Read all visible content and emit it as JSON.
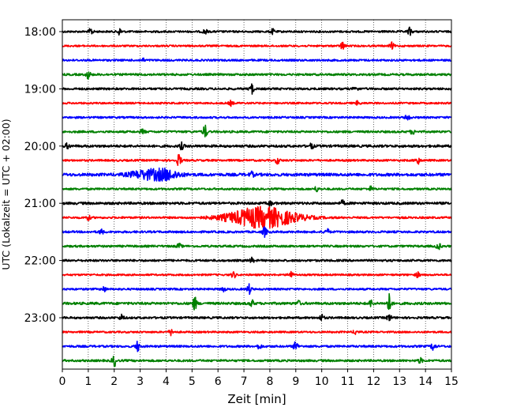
{
  "chart_data": {
    "type": "line",
    "title": "",
    "xlabel": "Zeit  [min]",
    "ylabel": "UTC (Lokalzeit = UTC + 02:00)",
    "xlim": [
      0,
      15
    ],
    "x_ticks": [
      "0",
      "1",
      "2",
      "3",
      "4",
      "5",
      "6",
      "7",
      "8",
      "9",
      "10",
      "11",
      "12",
      "13",
      "14",
      "15"
    ],
    "y_ticks": [
      {
        "label": "18:00",
        "row": 0
      },
      {
        "label": "19:00",
        "row": 4
      },
      {
        "label": "20:00",
        "row": 8
      },
      {
        "label": "21:00",
        "row": 12
      },
      {
        "label": "22:00",
        "row": 16
      },
      {
        "label": "23:00",
        "row": 20
      }
    ],
    "grid": "vertical dotted at each minute",
    "row_colors": [
      "#000000",
      "#ff0000",
      "#0000ff",
      "#008000"
    ],
    "rows": [
      {
        "start": "18:00",
        "color": "#000000",
        "noise": 1.2,
        "events": [
          {
            "t": 1.1,
            "amp": 4
          },
          {
            "t": 2.2,
            "amp": 4
          },
          {
            "t": 5.5,
            "amp": 3
          },
          {
            "t": 8.1,
            "amp": 3
          },
          {
            "t": 13.4,
            "amp": 5
          }
        ]
      },
      {
        "start": "18:15",
        "color": "#ff0000",
        "noise": 1.1,
        "events": [
          {
            "t": 10.8,
            "amp": 5
          },
          {
            "t": 12.7,
            "amp": 4
          }
        ]
      },
      {
        "start": "18:30",
        "color": "#0000ff",
        "noise": 1.2,
        "events": [
          {
            "t": 3.1,
            "amp": 2
          }
        ]
      },
      {
        "start": "18:45",
        "color": "#008000",
        "noise": 1.3,
        "events": [
          {
            "t": 1.0,
            "amp": 5
          }
        ]
      },
      {
        "start": "19:00",
        "color": "#000000",
        "noise": 1.3,
        "events": [
          {
            "t": 7.3,
            "amp": 6
          },
          {
            "t": 11.3,
            "amp": 3
          }
        ]
      },
      {
        "start": "19:15",
        "color": "#ff0000",
        "noise": 1.1,
        "events": [
          {
            "t": 6.5,
            "amp": 3
          },
          {
            "t": 11.4,
            "amp": 3
          }
        ]
      },
      {
        "start": "19:30",
        "color": "#0000ff",
        "noise": 1.2,
        "events": [
          {
            "t": 13.3,
            "amp": 4
          }
        ]
      },
      {
        "start": "19:45",
        "color": "#008000",
        "noise": 1.3,
        "events": [
          {
            "t": 3.1,
            "amp": 3
          },
          {
            "t": 5.5,
            "amp": 8
          },
          {
            "t": 13.5,
            "amp": 3
          }
        ]
      },
      {
        "start": "20:00",
        "color": "#000000",
        "noise": 1.5,
        "events": [
          {
            "t": 0.2,
            "amp": 3
          },
          {
            "t": 4.6,
            "amp": 4
          },
          {
            "t": 9.6,
            "amp": 3
          }
        ]
      },
      {
        "start": "20:15",
        "color": "#ff0000",
        "noise": 1.2,
        "events": [
          {
            "t": 4.5,
            "amp": 8
          },
          {
            "t": 8.3,
            "amp": 4
          },
          {
            "t": 13.7,
            "amp": 5
          }
        ]
      },
      {
        "start": "20:30",
        "color": "#0000ff",
        "noise": 1.8,
        "events": [
          {
            "t": 3.2,
            "amp": 5,
            "width": 0.6
          },
          {
            "t": 4.0,
            "amp": 6,
            "width": 0.5
          },
          {
            "t": 7.3,
            "amp": 3
          }
        ]
      },
      {
        "start": "20:45",
        "color": "#008000",
        "noise": 1.2,
        "events": [
          {
            "t": 9.8,
            "amp": 3
          },
          {
            "t": 11.9,
            "amp": 3
          }
        ]
      },
      {
        "start": "21:00",
        "color": "#000000",
        "noise": 1.5,
        "events": [
          {
            "t": 8.0,
            "amp": 3
          },
          {
            "t": 10.8,
            "amp": 3
          }
        ]
      },
      {
        "start": "21:15",
        "color": "#ff0000",
        "noise": 1.2,
        "events": [
          {
            "t": 7.7,
            "amp": 13,
            "width": 1.3
          },
          {
            "t": 1.0,
            "amp": 3
          }
        ]
      },
      {
        "start": "21:30",
        "color": "#0000ff",
        "noise": 1.3,
        "events": [
          {
            "t": 7.8,
            "amp": 6
          },
          {
            "t": 10.2,
            "amp": 4
          },
          {
            "t": 1.5,
            "amp": 3
          }
        ]
      },
      {
        "start": "21:45",
        "color": "#008000",
        "noise": 1.3,
        "events": [
          {
            "t": 14.5,
            "amp": 4
          },
          {
            "t": 4.5,
            "amp": 3
          }
        ]
      },
      {
        "start": "22:00",
        "color": "#000000",
        "noise": 1.3,
        "events": [
          {
            "t": 7.3,
            "amp": 3
          }
        ]
      },
      {
        "start": "22:15",
        "color": "#ff0000",
        "noise": 1.1,
        "events": [
          {
            "t": 6.6,
            "amp": 4
          },
          {
            "t": 8.8,
            "amp": 5
          },
          {
            "t": 13.7,
            "amp": 3
          }
        ]
      },
      {
        "start": "22:30",
        "color": "#0000ff",
        "noise": 1.2,
        "events": [
          {
            "t": 7.2,
            "amp": 6
          },
          {
            "t": 6.2,
            "amp": 3
          },
          {
            "t": 1.6,
            "amp": 3
          }
        ]
      },
      {
        "start": "22:45",
        "color": "#008000",
        "noise": 1.5,
        "events": [
          {
            "t": 5.1,
            "amp": 8
          },
          {
            "t": 7.3,
            "amp": 4
          },
          {
            "t": 12.6,
            "amp": 12
          },
          {
            "t": 9.1,
            "amp": 3
          },
          {
            "t": 11.9,
            "amp": 4
          }
        ]
      },
      {
        "start": "23:00",
        "color": "#000000",
        "noise": 1.3,
        "events": [
          {
            "t": 2.3,
            "amp": 4
          },
          {
            "t": 10.0,
            "amp": 4
          },
          {
            "t": 12.6,
            "amp": 4
          }
        ]
      },
      {
        "start": "23:15",
        "color": "#ff0000",
        "noise": 1.1,
        "events": [
          {
            "t": 4.2,
            "amp": 4
          },
          {
            "t": 11.3,
            "amp": 3
          }
        ]
      },
      {
        "start": "23:30",
        "color": "#0000ff",
        "noise": 1.3,
        "events": [
          {
            "t": 2.9,
            "amp": 6
          },
          {
            "t": 9.0,
            "amp": 6
          },
          {
            "t": 14.3,
            "amp": 5
          },
          {
            "t": 7.6,
            "amp": 3
          }
        ]
      },
      {
        "start": "23:45",
        "color": "#008000",
        "noise": 1.3,
        "events": [
          {
            "t": 2.0,
            "amp": 7
          },
          {
            "t": 13.8,
            "amp": 3
          }
        ]
      }
    ]
  }
}
